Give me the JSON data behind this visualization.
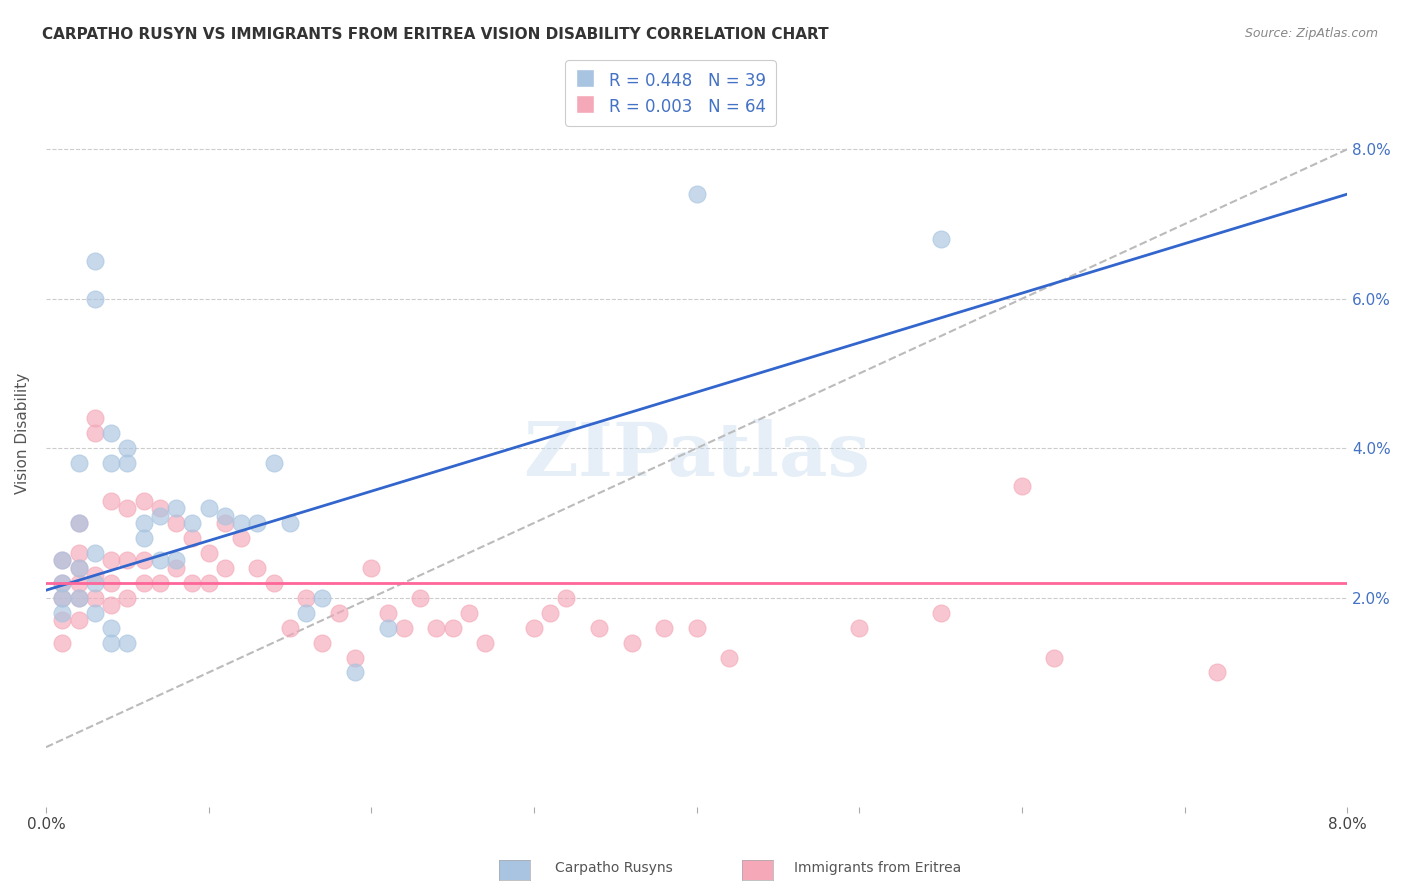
{
  "title": "CARPATHO RUSYN VS IMMIGRANTS FROM ERITREA VISION DISABILITY CORRELATION CHART",
  "source": "Source: ZipAtlas.com",
  "ylabel": "Vision Disability",
  "xlim": [
    0.0,
    0.08
  ],
  "ylim": [
    -0.008,
    0.092
  ],
  "yticks": [
    0.02,
    0.04,
    0.06,
    0.08
  ],
  "legend_label1": "Carpatho Rusyns",
  "legend_label2": "Immigrants from Eritrea",
  "R1": 0.448,
  "N1": 39,
  "R2": 0.003,
  "N2": 64,
  "color1": "#a8c4e0",
  "color2": "#f4a8b8",
  "line_color1": "#3366cc",
  "line_color2": "#ff6699",
  "watermark": "ZIPatlas",
  "background_color": "#ffffff",
  "grid_color": "#dddddd",
  "cr_x": [
    0.001,
    0.001,
    0.001,
    0.001,
    0.002,
    0.002,
    0.002,
    0.002,
    0.003,
    0.003,
    0.003,
    0.003,
    0.003,
    0.004,
    0.004,
    0.004,
    0.004,
    0.005,
    0.005,
    0.005,
    0.006,
    0.006,
    0.007,
    0.007,
    0.008,
    0.008,
    0.009,
    0.01,
    0.011,
    0.012,
    0.013,
    0.014,
    0.015,
    0.016,
    0.017,
    0.019,
    0.021,
    0.04,
    0.055
  ],
  "cr_y": [
    0.025,
    0.022,
    0.02,
    0.018,
    0.038,
    0.03,
    0.024,
    0.02,
    0.065,
    0.06,
    0.026,
    0.022,
    0.018,
    0.042,
    0.038,
    0.016,
    0.014,
    0.04,
    0.038,
    0.014,
    0.03,
    0.028,
    0.031,
    0.025,
    0.032,
    0.025,
    0.03,
    0.032,
    0.031,
    0.03,
    0.03,
    0.038,
    0.03,
    0.018,
    0.02,
    0.01,
    0.016,
    0.074,
    0.068
  ],
  "er_x": [
    0.001,
    0.001,
    0.001,
    0.001,
    0.001,
    0.002,
    0.002,
    0.002,
    0.002,
    0.002,
    0.002,
    0.003,
    0.003,
    0.003,
    0.003,
    0.004,
    0.004,
    0.004,
    0.004,
    0.005,
    0.005,
    0.005,
    0.006,
    0.006,
    0.006,
    0.007,
    0.007,
    0.008,
    0.008,
    0.009,
    0.009,
    0.01,
    0.01,
    0.011,
    0.011,
    0.012,
    0.013,
    0.014,
    0.015,
    0.016,
    0.017,
    0.018,
    0.019,
    0.02,
    0.021,
    0.022,
    0.023,
    0.024,
    0.025,
    0.026,
    0.027,
    0.03,
    0.031,
    0.032,
    0.034,
    0.036,
    0.038,
    0.04,
    0.042,
    0.05,
    0.055,
    0.06,
    0.062,
    0.072
  ],
  "er_y": [
    0.025,
    0.022,
    0.02,
    0.017,
    0.014,
    0.03,
    0.026,
    0.024,
    0.022,
    0.02,
    0.017,
    0.044,
    0.042,
    0.023,
    0.02,
    0.033,
    0.025,
    0.022,
    0.019,
    0.032,
    0.025,
    0.02,
    0.033,
    0.025,
    0.022,
    0.032,
    0.022,
    0.03,
    0.024,
    0.028,
    0.022,
    0.026,
    0.022,
    0.03,
    0.024,
    0.028,
    0.024,
    0.022,
    0.016,
    0.02,
    0.014,
    0.018,
    0.012,
    0.024,
    0.018,
    0.016,
    0.02,
    0.016,
    0.016,
    0.018,
    0.014,
    0.016,
    0.018,
    0.02,
    0.016,
    0.014,
    0.016,
    0.016,
    0.012,
    0.016,
    0.018,
    0.035,
    0.012,
    0.01
  ]
}
